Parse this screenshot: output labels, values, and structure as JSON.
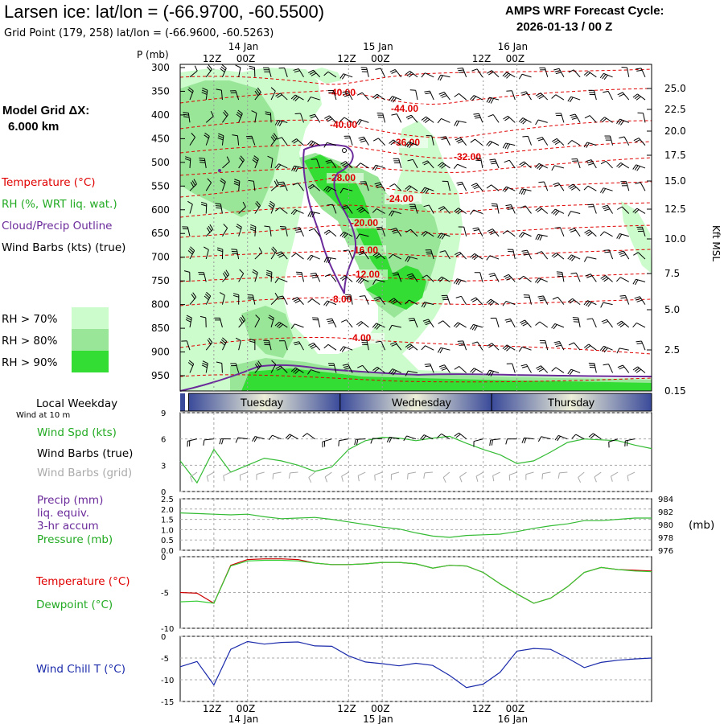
{
  "header": {
    "title": "Larsen ice:  lat/lon = (-66.9700, -60.5500)",
    "grid_point": "Grid Point (179, 258) lat/lon = (-66.9600, -60.5263)",
    "forecast_label": "AMPS WRF Forecast Cycle:",
    "forecast_cycle": "2026-01-13 / 00  Z"
  },
  "time_axis": {
    "top_row1": [
      "14 Jan",
      "15 Jan",
      "16 Jan"
    ],
    "top_row2": [
      "12Z",
      "00Z",
      "12Z",
      "00Z",
      "12Z",
      "00Z"
    ],
    "bottom_row1": [
      "12Z",
      "00Z",
      "12Z",
      "00Z",
      "12Z",
      "00Z"
    ],
    "bottom_row2": [
      "14 Jan",
      "15 Jan",
      "16 Jan"
    ],
    "weekday_label": "Local Weekday",
    "weekdays": [
      "Tuesday",
      "Wednesday",
      "Thursday"
    ],
    "wind_note": "Wind at 10 m"
  },
  "sidebar": {
    "model_grid": "Model Grid ΔX:",
    "grid_km": "6.000 km",
    "legend_temp": "Temperature (°C)",
    "legend_rh": "RH (%, WRT liq. wat.)",
    "legend_cloud": "Cloud/Precip Outline",
    "legend_wind": "Wind Barbs (kts) (true)",
    "rh_70": "RH > 70%",
    "rh_80": "RH > 80%",
    "rh_90": "RH > 90%",
    "colors": {
      "rh70": "#ccfccc",
      "rh80": "#99e699",
      "rh90": "#33dd33",
      "temp": "#e00000",
      "cloud": "#6a2a9a"
    }
  },
  "chart_data": [
    {
      "type": "heatmap",
      "title": "Vertical cross-section",
      "ylabel": "P (mb)",
      "ylabel_right": "Kft MSL",
      "pressure_levels": [
        "300",
        "350",
        "400",
        "450",
        "500",
        "550",
        "600",
        "650",
        "700",
        "750",
        "800",
        "850",
        "900",
        "950"
      ],
      "height_labels": [
        "25.0",
        "22.5",
        "20.0",
        "17.5",
        "15.0",
        "12.5",
        "10.0",
        "7.5",
        "5.0",
        "2.5",
        "0.15"
      ],
      "temperature_labels": [
        "-40.00",
        "-44.00",
        "-40.00",
        "-36.00",
        "-32.00",
        "-28.00",
        "-24.00",
        "-20.00",
        "-16.00",
        "-12.00",
        "-8.00",
        "-4.00"
      ]
    },
    {
      "type": "line",
      "label": "Wind Spd (kts)",
      "label2": "Wind Barbs (true)",
      "label3": "Wind Barbs (grid)",
      "ylim": [
        0,
        9
      ],
      "y_ticks": [
        "0",
        "3",
        "6",
        "9"
      ],
      "x_hours": [
        0,
        6,
        12,
        18,
        24,
        30,
        36,
        42,
        48,
        54,
        60,
        66,
        72,
        78,
        84,
        90,
        96,
        102,
        108,
        114,
        120,
        126,
        132,
        138,
        144,
        150,
        156,
        162,
        168
      ],
      "values": [
        3.5,
        1.0,
        4.8,
        2.2,
        3.0,
        3.8,
        3.5,
        3.0,
        2.3,
        2.8,
        4.8,
        5.8,
        6.2,
        6.1,
        5.8,
        6.1,
        6.3,
        5.5,
        4.8,
        4.2,
        3.2,
        3.5,
        4.5,
        5.6,
        6.0,
        5.9,
        5.8,
        5.3,
        4.9
      ],
      "colors": {
        "line": "#33bb33",
        "barb": "#000000",
        "grid_barb": "#aaaaaa",
        "label": "#22aa22"
      }
    },
    {
      "type": "line",
      "label": "Precip (mm)",
      "label2": "liq. equiv.",
      "label3": "3-hr accum",
      "label4": "Pressure (mb)",
      "precip_ylim": [
        0,
        2.5
      ],
      "precip_ticks": [
        "0.0",
        "0.5",
        "1.0",
        "1.5",
        "2.0",
        "2.5"
      ],
      "pressure_ylim": [
        976,
        984
      ],
      "pressure_ticks": [
        "976",
        "978",
        "980",
        "982",
        "984"
      ],
      "units": "(mb)",
      "x_hours": [
        0,
        6,
        12,
        18,
        24,
        30,
        36,
        42,
        48,
        54,
        60,
        66,
        72,
        78,
        84,
        90,
        96,
        102,
        108,
        114,
        120,
        126,
        132,
        138,
        144,
        150,
        156,
        162,
        168
      ],
      "pressure": [
        981.8,
        981.7,
        981.6,
        981.5,
        981.6,
        981.2,
        980.9,
        981.0,
        981.1,
        980.8,
        980.4,
        980.0,
        979.6,
        979.3,
        978.7,
        978.2,
        978.0,
        978.3,
        978.4,
        978.5,
        978.9,
        979.4,
        979.8,
        980.1,
        980.6,
        980.6,
        980.8,
        981.0,
        981.0
      ],
      "colors": {
        "line": "#33bb33",
        "precip_label": "#6a2a9a",
        "pressure_label": "#22aa22"
      }
    },
    {
      "type": "line",
      "label_temp": "Temperature (°C)",
      "label_dew": "Dewpoint (°C)",
      "ylim": [
        -10,
        0
      ],
      "y_ticks": [
        "0",
        "-5",
        "-10"
      ],
      "x_hours": [
        0,
        6,
        12,
        18,
        24,
        30,
        36,
        42,
        48,
        54,
        60,
        66,
        72,
        78,
        84,
        90,
        96,
        102,
        108,
        114,
        120,
        126,
        132,
        138,
        144,
        150,
        156,
        162,
        168
      ],
      "temperature": [
        -5.0,
        -5.1,
        -6.5,
        -1.2,
        -0.4,
        -0.3,
        -0.3,
        -0.4,
        -0.9,
        -1.1,
        -1.1,
        -1.0,
        -0.8,
        -0.8,
        -1.0,
        -1.6,
        -1.2,
        -1.3,
        -2.2,
        -3.8,
        -5.2,
        -6.5,
        -5.8,
        -4.2,
        -2.2,
        -1.5,
        -1.8,
        -1.9,
        -2.0
      ],
      "dewpoint": [
        -6.3,
        -6.2,
        -6.5,
        -1.3,
        -0.6,
        -0.5,
        -0.5,
        -0.6,
        -0.9,
        -1.1,
        -1.1,
        -1.0,
        -0.8,
        -0.8,
        -1.0,
        -1.6,
        -1.2,
        -1.3,
        -2.2,
        -3.8,
        -5.2,
        -6.5,
        -5.8,
        -4.2,
        -2.2,
        -1.5,
        -1.8,
        -2.0,
        -2.1
      ],
      "colors": {
        "temp": "#cc0000",
        "dew": "#33cc33"
      }
    },
    {
      "type": "line",
      "label": "Wind Chill T (°C)",
      "ylim": [
        -15,
        0
      ],
      "y_ticks": [
        "0",
        "-5",
        "-10",
        "-15"
      ],
      "x_hours": [
        0,
        6,
        12,
        18,
        24,
        30,
        36,
        42,
        48,
        54,
        60,
        66,
        72,
        78,
        84,
        90,
        96,
        102,
        108,
        114,
        120,
        126,
        132,
        138,
        144,
        150,
        156,
        162,
        168
      ],
      "values": [
        -7.0,
        -5.8,
        -11.2,
        -3.0,
        -1.2,
        -1.8,
        -1.4,
        -1.3,
        -2.2,
        -2.3,
        -4.5,
        -5.9,
        -6.3,
        -6.8,
        -6.2,
        -6.7,
        -9.0,
        -11.8,
        -11.0,
        -8.3,
        -3.4,
        -2.8,
        -3.0,
        -5.0,
        -7.2,
        -6.0,
        -5.5,
        -5.2,
        -5.0
      ],
      "colors": {
        "line": "#1a2aaa",
        "label": "#1a2aaa"
      }
    }
  ]
}
